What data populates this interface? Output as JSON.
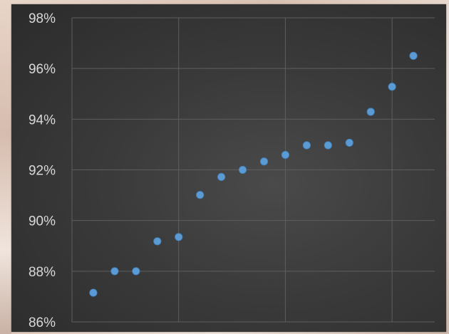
{
  "chart_data": {
    "type": "scatter",
    "title": "",
    "xlabel": "",
    "ylabel": "",
    "ylim": [
      0.86,
      0.98
    ],
    "xlim": [
      0,
      17
    ],
    "y_ticks": [
      0.86,
      0.88,
      0.9,
      0.92,
      0.94,
      0.96,
      0.98
    ],
    "y_tick_labels": [
      "86%",
      "88%",
      "90%",
      "92%",
      "94%",
      "96%",
      "98%"
    ],
    "x_gridlines": [
      5,
      10,
      15
    ],
    "horizontal_grid": true,
    "vertical_grid": true,
    "legend": "none",
    "point_color": "#5b9bd5",
    "background_color": "#3a3a3a",
    "series": [
      {
        "points": [
          {
            "x": 1,
            "y": 0.8715
          },
          {
            "x": 2,
            "y": 0.88
          },
          {
            "x": 3,
            "y": 0.88
          },
          {
            "x": 4,
            "y": 0.8918
          },
          {
            "x": 5,
            "y": 0.8935
          },
          {
            "x": 6,
            "y": 0.9101
          },
          {
            "x": 7,
            "y": 0.9172
          },
          {
            "x": 8,
            "y": 0.92
          },
          {
            "x": 9,
            "y": 0.9233
          },
          {
            "x": 10,
            "y": 0.9259
          },
          {
            "x": 11,
            "y": 0.9297
          },
          {
            "x": 12,
            "y": 0.9297
          },
          {
            "x": 13,
            "y": 0.9307
          },
          {
            "x": 14,
            "y": 0.9429
          },
          {
            "x": 15,
            "y": 0.9528
          },
          {
            "x": 16,
            "y": 0.965
          }
        ]
      }
    ]
  }
}
